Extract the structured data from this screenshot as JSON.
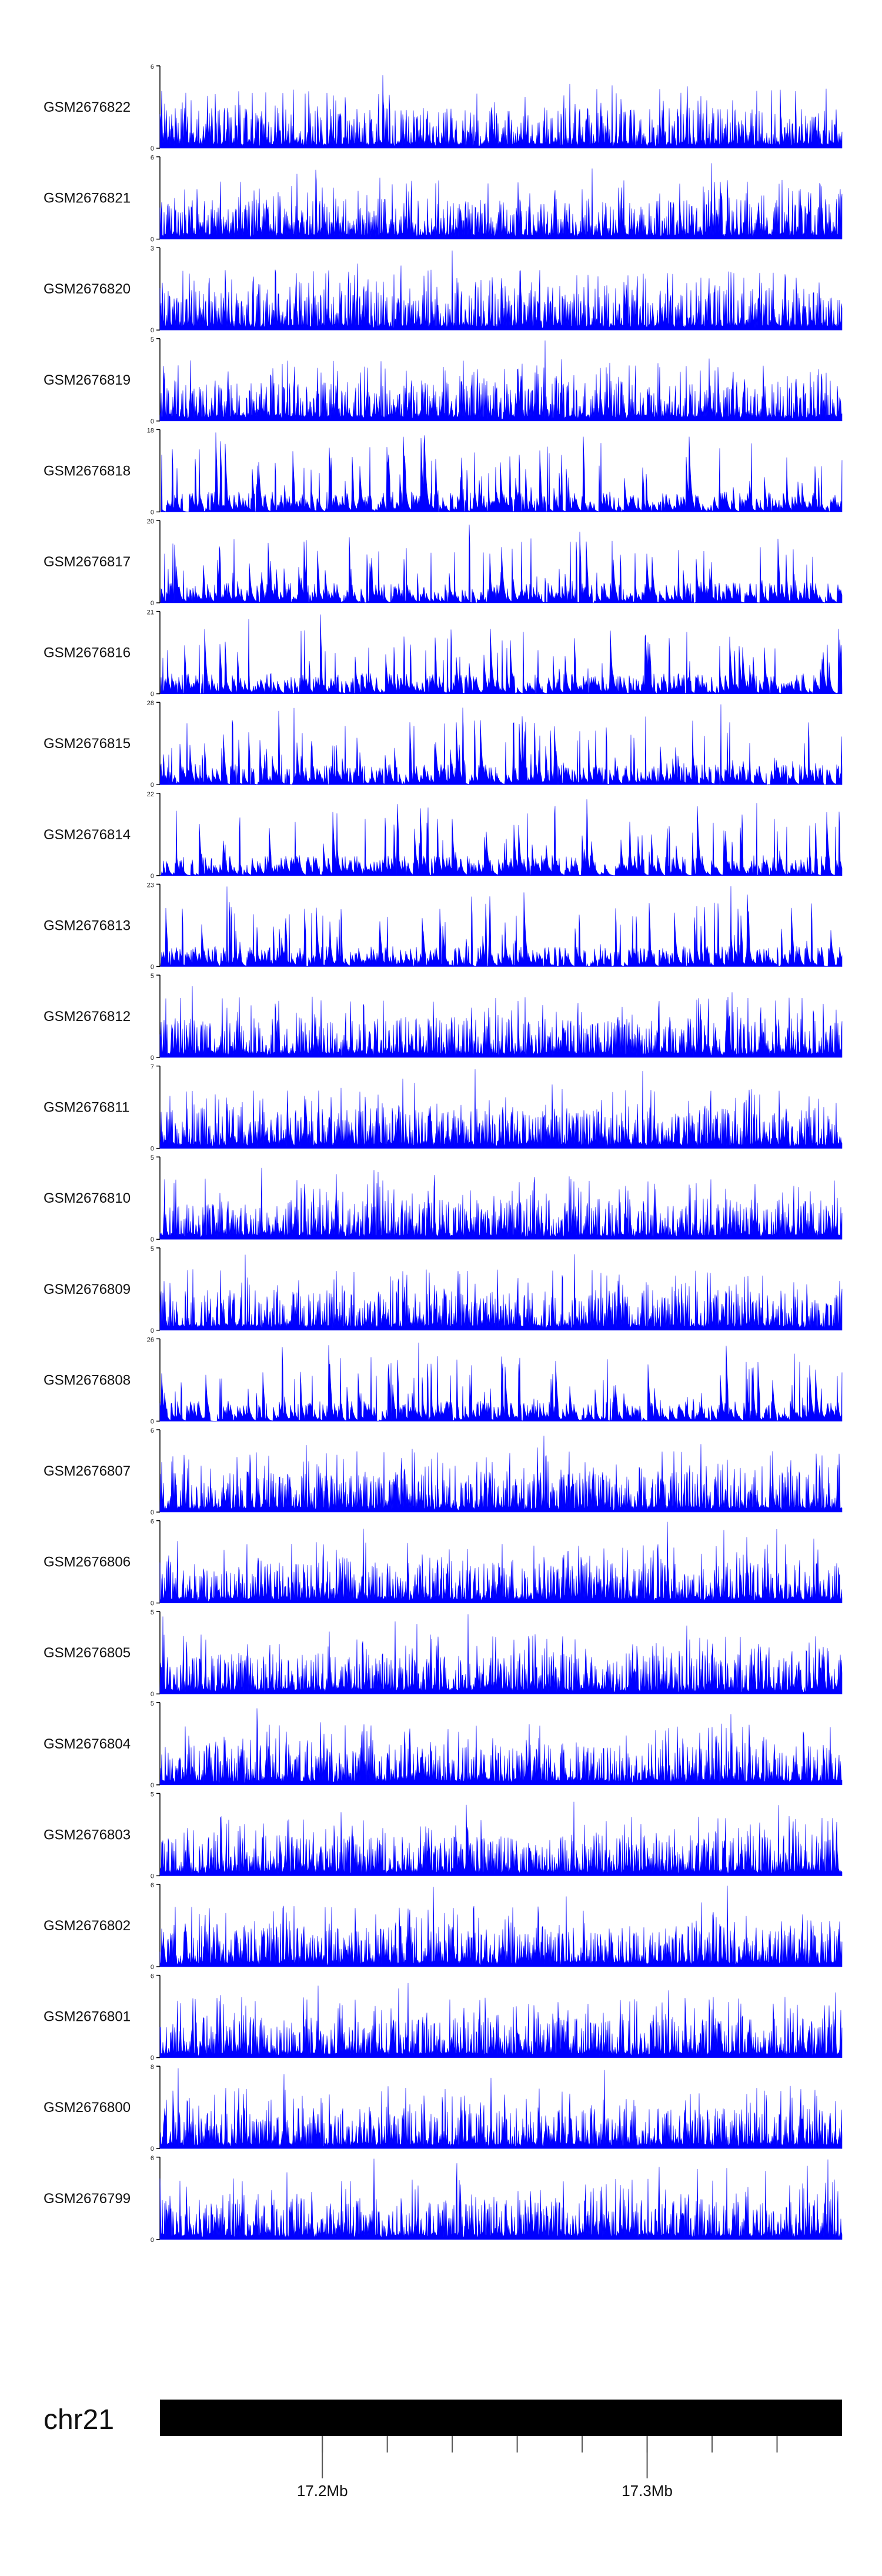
{
  "chart_data": {
    "type": "area",
    "color": "#0000ff",
    "axis_color": "#000000",
    "chromosome": {
      "name": "chr21",
      "range_mb": [
        17.15,
        17.36
      ],
      "ticks_mb": [
        17.2,
        17.22,
        17.24,
        17.26,
        17.28,
        17.3,
        17.32,
        17.34
      ],
      "labeled_ticks": [
        {
          "value_mb": 17.2,
          "label": "17.2Mb"
        },
        {
          "value_mb": 17.3,
          "label": "17.3Mb"
        }
      ]
    },
    "tracks": [
      {
        "name": "GSM2676822",
        "ymax": "6",
        "ymin": "0",
        "ymax_value": 6
      },
      {
        "name": "GSM2676821",
        "ymax": "6",
        "ymin": "0",
        "ymax_value": 6
      },
      {
        "name": "GSM2676820",
        "ymax": "3",
        "ymin": "0",
        "ymax_value": 3
      },
      {
        "name": "GSM2676819",
        "ymax": "5",
        "ymin": "0",
        "ymax_value": 5
      },
      {
        "name": "GSM2676818",
        "ymax": "18",
        "ymin": "0",
        "ymax_value": 18
      },
      {
        "name": "GSM2676817",
        "ymax": "20",
        "ymin": "0",
        "ymax_value": 20
      },
      {
        "name": "GSM2676816",
        "ymax": "21",
        "ymin": "0",
        "ymax_value": 21
      },
      {
        "name": "GSM2676815",
        "ymax": "28",
        "ymin": "0",
        "ymax_value": 28
      },
      {
        "name": "GSM2676814",
        "ymax": "22",
        "ymin": "0",
        "ymax_value": 22
      },
      {
        "name": "GSM2676813",
        "ymax": "23",
        "ymin": "0",
        "ymax_value": 23
      },
      {
        "name": "GSM2676812",
        "ymax": "5",
        "ymin": "0",
        "ymax_value": 5
      },
      {
        "name": "GSM2676811",
        "ymax": "7",
        "ymin": "0",
        "ymax_value": 7
      },
      {
        "name": "GSM2676810",
        "ymax": "5",
        "ymin": "0",
        "ymax_value": 5
      },
      {
        "name": "GSM2676809",
        "ymax": "5",
        "ymin": "0",
        "ymax_value": 5
      },
      {
        "name": "GSM2676808",
        "ymax": "26",
        "ymin": "0",
        "ymax_value": 26
      },
      {
        "name": "GSM2676807",
        "ymax": "6",
        "ymin": "0",
        "ymax_value": 6
      },
      {
        "name": "GSM2676806",
        "ymax": "6",
        "ymin": "0",
        "ymax_value": 6
      },
      {
        "name": "GSM2676805",
        "ymax": "5",
        "ymin": "0",
        "ymax_value": 5
      },
      {
        "name": "GSM2676804",
        "ymax": "5",
        "ymin": "0",
        "ymax_value": 5
      },
      {
        "name": "GSM2676803",
        "ymax": "5",
        "ymin": "0",
        "ymax_value": 5
      },
      {
        "name": "GSM2676802",
        "ymax": "6",
        "ymin": "0",
        "ymax_value": 6
      },
      {
        "name": "GSM2676801",
        "ymax": "6",
        "ymin": "0",
        "ymax_value": 6
      },
      {
        "name": "GSM2676800",
        "ymax": "8",
        "ymin": "0",
        "ymax_value": 8
      },
      {
        "name": "GSM2676799",
        "ymax": "6",
        "ymin": "0",
        "ymax_value": 6
      }
    ]
  }
}
